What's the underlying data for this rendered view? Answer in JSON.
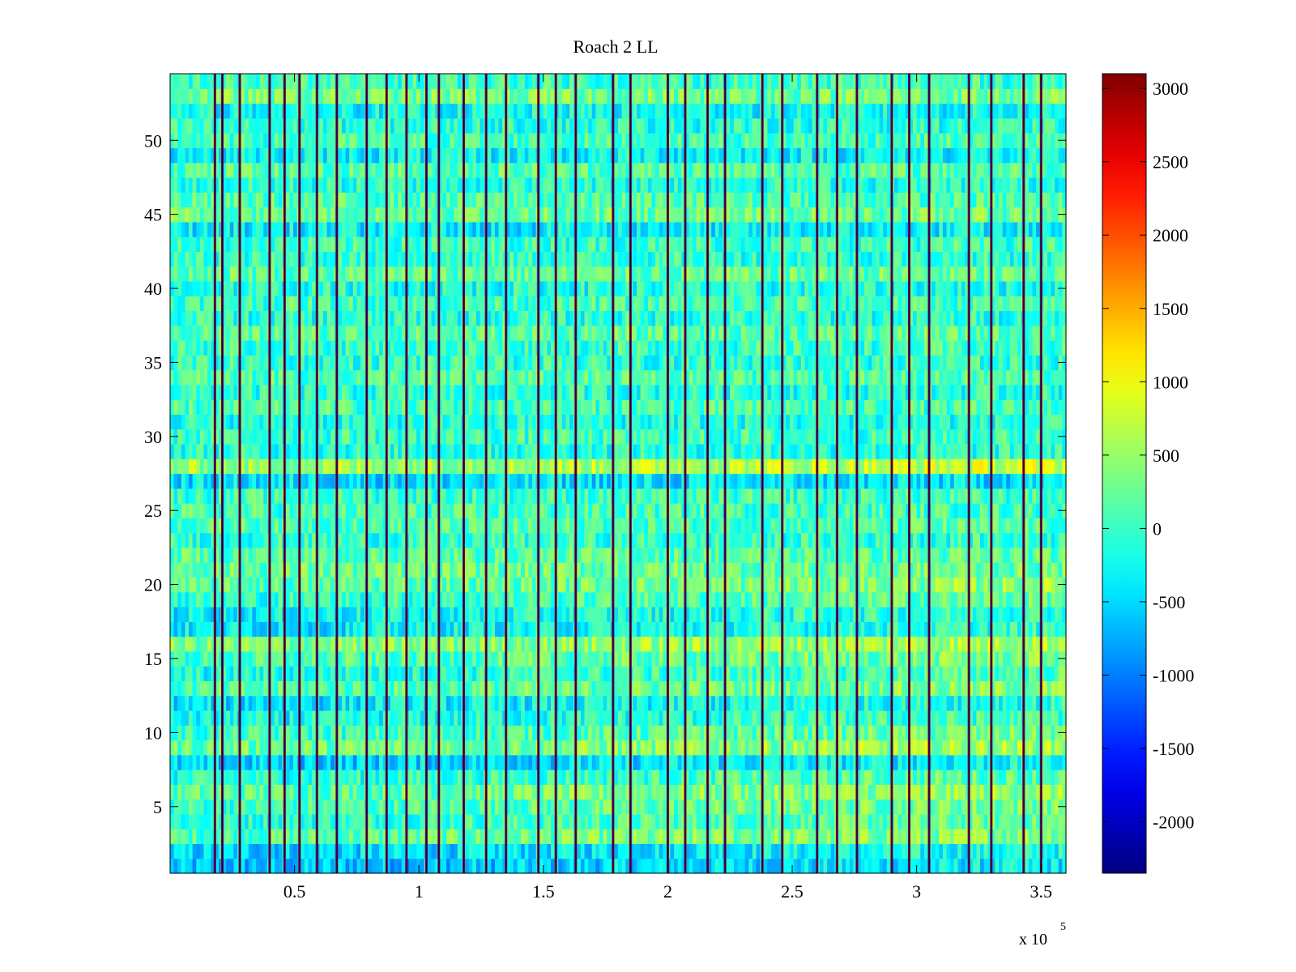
{
  "chart_data": {
    "type": "heatmap",
    "title": "Roach 2 LL",
    "xlabel": "",
    "ylabel": "",
    "x_range": [
      0,
      360000
    ],
    "y_range": [
      0.5,
      54.5
    ],
    "rows": 54,
    "x_scale_label": "x 10",
    "x_scale_exponent": "5",
    "x_ticks": [
      {
        "value": 50000,
        "label": "0.5"
      },
      {
        "value": 100000,
        "label": "1"
      },
      {
        "value": 150000,
        "label": "1.5"
      },
      {
        "value": 200000,
        "label": "2"
      },
      {
        "value": 250000,
        "label": "2.5"
      },
      {
        "value": 300000,
        "label": "3"
      },
      {
        "value": 350000,
        "label": "3.5"
      }
    ],
    "y_ticks": [
      {
        "value": 5,
        "label": "5"
      },
      {
        "value": 10,
        "label": "10"
      },
      {
        "value": 15,
        "label": "15"
      },
      {
        "value": 20,
        "label": "20"
      },
      {
        "value": 25,
        "label": "25"
      },
      {
        "value": 30,
        "label": "30"
      },
      {
        "value": 35,
        "label": "35"
      },
      {
        "value": 40,
        "label": "40"
      },
      {
        "value": 45,
        "label": "45"
      },
      {
        "value": 50,
        "label": "50"
      }
    ],
    "colorbar": {
      "range": [
        -2350,
        3100
      ],
      "colormap": "jet",
      "ticks": [
        {
          "value": 3000,
          "label": "3000"
        },
        {
          "value": 2500,
          "label": "2500"
        },
        {
          "value": 2000,
          "label": "2000"
        },
        {
          "value": 1500,
          "label": "1500"
        },
        {
          "value": 1000,
          "label": "1000"
        },
        {
          "value": 500,
          "label": "500"
        },
        {
          "value": 0,
          "label": "0"
        },
        {
          "value": -500,
          "label": "-500"
        },
        {
          "value": -1000,
          "label": "-1000"
        },
        {
          "value": -1500,
          "label": "-1500"
        },
        {
          "value": -2000,
          "label": "-2000"
        }
      ]
    },
    "spike_columns_x": [
      18000,
      21000,
      28000,
      40000,
      46000,
      52000,
      59000,
      67000,
      79000,
      87000,
      95000,
      103000,
      108000,
      118000,
      127000,
      135000,
      148000,
      155000,
      163000,
      178000,
      185000,
      200000,
      207000,
      216000,
      223000,
      238000,
      246000,
      260000,
      268000,
      276000,
      290000,
      297000,
      305000,
      321000,
      330000,
      343000,
      350000
    ],
    "row_bias": [
      {
        "row": 1,
        "value": -700
      },
      {
        "row": 2,
        "value": -550
      },
      {
        "row": 3,
        "value": 100
      },
      {
        "row": 4,
        "value": -100
      },
      {
        "row": 5,
        "value": 0
      },
      {
        "row": 6,
        "value": 150
      },
      {
        "row": 7,
        "value": -150
      },
      {
        "row": 8,
        "value": -600
      },
      {
        "row": 9,
        "value": 200
      },
      {
        "row": 10,
        "value": -50
      },
      {
        "row": 11,
        "value": -300
      },
      {
        "row": 12,
        "value": -450
      },
      {
        "row": 13,
        "value": 50
      },
      {
        "row": 14,
        "value": -200
      },
      {
        "row": 15,
        "value": 0
      },
      {
        "row": 16,
        "value": 300
      },
      {
        "row": 17,
        "value": -400
      },
      {
        "row": 18,
        "value": -350
      },
      {
        "row": 19,
        "value": -100
      },
      {
        "row": 20,
        "value": 100
      },
      {
        "row": 21,
        "value": 250
      },
      {
        "row": 22,
        "value": 150
      },
      {
        "row": 23,
        "value": -50
      },
      {
        "row": 24,
        "value": 100
      },
      {
        "row": 25,
        "value": 50
      },
      {
        "row": 26,
        "value": 0
      },
      {
        "row": 27,
        "value": -450
      },
      {
        "row": 28,
        "value": 450
      },
      {
        "row": 29,
        "value": -100
      },
      {
        "row": 30,
        "value": 0
      },
      {
        "row": 31,
        "value": -150
      },
      {
        "row": 32,
        "value": 50
      },
      {
        "row": 33,
        "value": -100
      },
      {
        "row": 34,
        "value": 100
      },
      {
        "row": 35,
        "value": -50
      },
      {
        "row": 36,
        "value": 0
      },
      {
        "row": 37,
        "value": 150
      },
      {
        "row": 38,
        "value": -100
      },
      {
        "row": 39,
        "value": 50
      },
      {
        "row": 40,
        "value": -150
      },
      {
        "row": 41,
        "value": 200
      },
      {
        "row": 42,
        "value": -50
      },
      {
        "row": 43,
        "value": 0
      },
      {
        "row": 44,
        "value": -350
      },
      {
        "row": 45,
        "value": 250
      },
      {
        "row": 46,
        "value": 100
      },
      {
        "row": 47,
        "value": -100
      },
      {
        "row": 48,
        "value": 150
      },
      {
        "row": 49,
        "value": -300
      },
      {
        "row": 50,
        "value": 50
      },
      {
        "row": 51,
        "value": -100
      },
      {
        "row": 52,
        "value": -250
      },
      {
        "row": 53,
        "value": 300
      },
      {
        "row": 54,
        "value": 0
      }
    ]
  }
}
